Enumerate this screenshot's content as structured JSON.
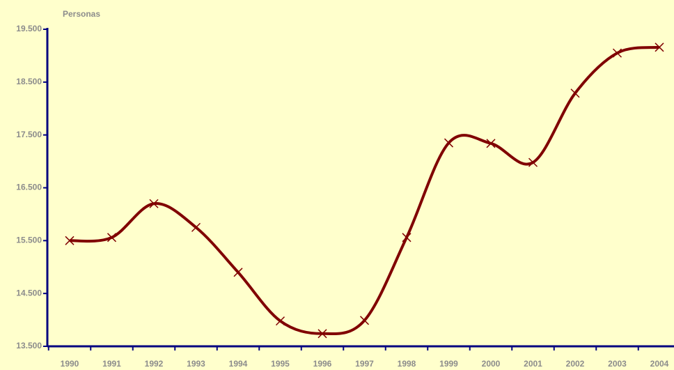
{
  "chart_data": {
    "type": "line",
    "y_label": "Personas",
    "categories": [
      "1990",
      "1991",
      "1992",
      "1993",
      "1994",
      "1995",
      "1996",
      "1997",
      "1998",
      "1999",
      "2000",
      "2001",
      "2002",
      "2003",
      "2004"
    ],
    "series": [
      {
        "name": "Personas",
        "color": "#800000",
        "values": [
          15500,
          15560,
          16200,
          15750,
          14900,
          13980,
          13740,
          13990,
          15560,
          17350,
          17340,
          16980,
          18290,
          19050,
          19160
        ]
      }
    ],
    "ylim": [
      13500,
      19500
    ],
    "yticks": [
      {
        "value": 13500,
        "label": "13.500"
      },
      {
        "value": 14500,
        "label": "14.500"
      },
      {
        "value": 15500,
        "label": "15.500"
      },
      {
        "value": 16500,
        "label": "16.500"
      },
      {
        "value": 17500,
        "label": "17.500"
      },
      {
        "value": 18500,
        "label": "18.500"
      },
      {
        "value": 19500,
        "label": "19.500"
      }
    ],
    "axis_color": "#000080",
    "background": "#ffffcc"
  }
}
